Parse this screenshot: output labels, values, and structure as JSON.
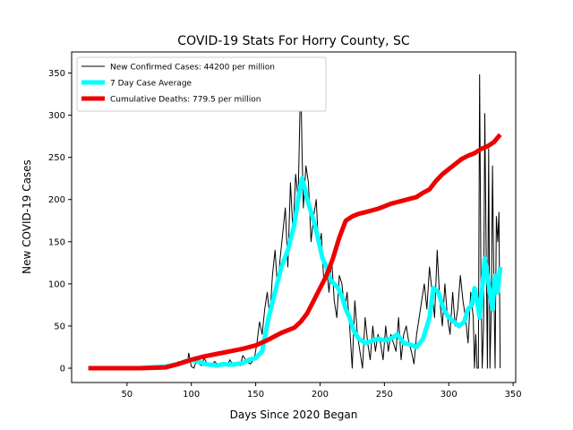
{
  "chart_data": {
    "type": "line",
    "title": "COVID-19 Stats For Horry County, SC",
    "xlabel": "Days Since 2020 Began",
    "ylabel": "New COVID-19 Cases",
    "xlim": [
      7,
      352
    ],
    "ylim": [
      -17,
      375
    ],
    "xticks": [
      50,
      100,
      150,
      200,
      250,
      300,
      350
    ],
    "yticks": [
      0,
      50,
      100,
      150,
      200,
      250,
      300,
      350
    ],
    "grid": false,
    "legend_position": "top-left",
    "series": [
      {
        "name": "New Confirmed Cases: 44200 per million",
        "color": "#000000",
        "style": "thin",
        "x": [
          20,
          60,
          75,
          80,
          85,
          88,
          90,
          92,
          95,
          97,
          98,
          100,
          102,
          104,
          106,
          108,
          110,
          112,
          115,
          118,
          120,
          123,
          126,
          128,
          130,
          133,
          135,
          138,
          140,
          143,
          146,
          149,
          151,
          153,
          155,
          157,
          159,
          161,
          163,
          165,
          167,
          169,
          171,
          173,
          175,
          177,
          179,
          181,
          183,
          185,
          186,
          187,
          189,
          191,
          193,
          195,
          197,
          199,
          201,
          203,
          205,
          207,
          209,
          211,
          213,
          215,
          217,
          219,
          221,
          223,
          225,
          227,
          229,
          231,
          233,
          235,
          237,
          239,
          241,
          243,
          245,
          247,
          249,
          251,
          253,
          255,
          257,
          259,
          261,
          263,
          265,
          267,
          269,
          271,
          273,
          275,
          277,
          279,
          281,
          283,
          285,
          287,
          289,
          291,
          293,
          295,
          297,
          299,
          301,
          303,
          305,
          307,
          309,
          311,
          313,
          315,
          317,
          319,
          320,
          321,
          322,
          323,
          324,
          325,
          326,
          327,
          328,
          329,
          330,
          331,
          332,
          333,
          334,
          335,
          336,
          337,
          338,
          339,
          340
        ],
        "values": [
          0,
          0,
          0,
          3,
          5,
          2,
          8,
          4,
          10,
          6,
          18,
          2,
          0,
          10,
          5,
          3,
          12,
          6,
          2,
          8,
          5,
          3,
          7,
          4,
          10,
          2,
          6,
          3,
          15,
          8,
          5,
          12,
          30,
          55,
          40,
          70,
          90,
          60,
          110,
          140,
          95,
          130,
          160,
          190,
          120,
          220,
          160,
          230,
          200,
          350,
          260,
          190,
          240,
          220,
          150,
          180,
          200,
          140,
          160,
          100,
          120,
          90,
          130,
          80,
          60,
          110,
          100,
          70,
          90,
          50,
          0,
          80,
          40,
          20,
          0,
          60,
          30,
          10,
          50,
          20,
          40,
          30,
          10,
          50,
          20,
          40,
          30,
          20,
          60,
          10,
          40,
          50,
          30,
          20,
          5,
          40,
          60,
          80,
          100,
          70,
          120,
          90,
          60,
          140,
          80,
          50,
          100,
          60,
          40,
          90,
          50,
          70,
          110,
          80,
          60,
          30,
          90,
          60,
          0,
          40,
          0,
          0,
          348,
          100,
          0,
          50,
          302,
          150,
          0,
          260,
          0,
          70,
          240,
          100,
          0,
          180,
          150,
          185,
          0
        ]
      },
      {
        "name": "7 Day Case Average",
        "color": "#00ffff",
        "style": "thick",
        "x": [
          20,
          60,
          80,
          90,
          95,
          100,
          105,
          110,
          115,
          120,
          125,
          130,
          135,
          140,
          145,
          150,
          155,
          160,
          165,
          170,
          175,
          180,
          183,
          186,
          188,
          190,
          193,
          196,
          199,
          202,
          205,
          208,
          211,
          214,
          217,
          220,
          223,
          226,
          230,
          235,
          240,
          245,
          250,
          255,
          260,
          265,
          270,
          275,
          280,
          285,
          288,
          292,
          296,
          300,
          304,
          308,
          312,
          315,
          318,
          320,
          322,
          324,
          326,
          328,
          330,
          332,
          334,
          336,
          338,
          340
        ],
        "values": [
          0,
          0,
          2,
          5,
          8,
          10,
          8,
          5,
          4,
          3,
          5,
          4,
          5,
          6,
          10,
          12,
          20,
          60,
          90,
          120,
          140,
          170,
          200,
          225,
          215,
          200,
          185,
          170,
          150,
          130,
          120,
          105,
          100,
          95,
          85,
          70,
          60,
          45,
          35,
          30,
          32,
          35,
          33,
          35,
          40,
          30,
          28,
          25,
          35,
          60,
          95,
          90,
          70,
          60,
          55,
          50,
          55,
          70,
          75,
          95,
          80,
          60,
          95,
          130,
          110,
          90,
          70,
          110,
          90,
          120
        ]
      },
      {
        "name": "Cumulative Deaths: 779.5 per million",
        "color": "#ee0000",
        "style": "thick",
        "x": [
          20,
          60,
          80,
          90,
          100,
          110,
          120,
          130,
          140,
          150,
          160,
          170,
          180,
          185,
          190,
          195,
          200,
          205,
          210,
          215,
          220,
          225,
          230,
          235,
          240,
          245,
          250,
          255,
          260,
          265,
          270,
          275,
          280,
          285,
          290,
          295,
          300,
          305,
          310,
          315,
          320,
          325,
          330,
          335,
          340
        ],
        "values": [
          0,
          0,
          1,
          5,
          10,
          14,
          17,
          20,
          23,
          27,
          34,
          42,
          48,
          55,
          65,
          80,
          95,
          110,
          130,
          155,
          175,
          180,
          183,
          185,
          187,
          189,
          192,
          195,
          197,
          199,
          201,
          203,
          208,
          212,
          222,
          230,
          236,
          242,
          248,
          252,
          255,
          260,
          263,
          268,
          277
        ]
      }
    ]
  }
}
